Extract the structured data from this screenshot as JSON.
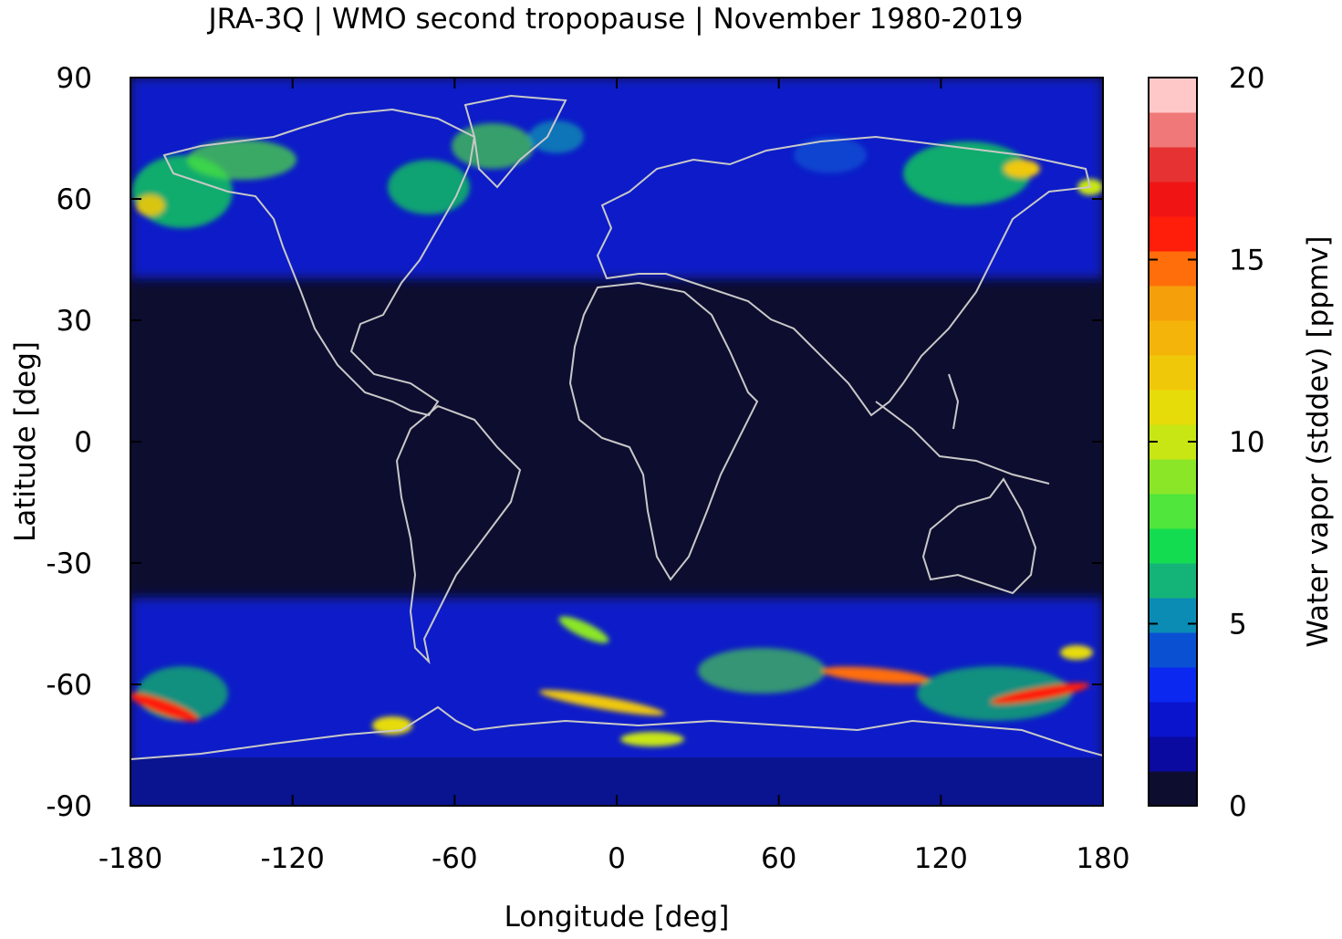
{
  "title": "JRA-3Q | WMO second tropopause | November 1980-2019",
  "map": {
    "xlabel": "Longitude [deg]",
    "ylabel": "Latitude [deg]",
    "xlim": [
      -180,
      180
    ],
    "ylim": [
      -90,
      90
    ],
    "xticks": [
      "-180",
      "-120",
      "-60",
      "0",
      "60",
      "120",
      "180"
    ],
    "yticks": [
      "90",
      "60",
      "30",
      "0",
      "-30",
      "-60",
      "-90"
    ],
    "background_color": "#0d0d30",
    "coastline_color": "#c8c8c8"
  },
  "colorbar": {
    "label": "Water vapor (stddev) [ppmv]",
    "range": [
      0,
      20
    ],
    "ticks": [
      "0",
      "5",
      "10",
      "15",
      "20"
    ],
    "colors": [
      "#0d0d30",
      "#0a0aa0",
      "#0a14cc",
      "#0a28f0",
      "#0a50d2",
      "#0a8cb4",
      "#14b478",
      "#14dc50",
      "#50e63c",
      "#8ce628",
      "#c8e614",
      "#e6dc0a",
      "#f0c80a",
      "#f5b40a",
      "#f5a00a",
      "#ff6e0a",
      "#ff1e0a",
      "#f01414",
      "#e63232",
      "#f07878",
      "#ffc8c8"
    ]
  }
}
